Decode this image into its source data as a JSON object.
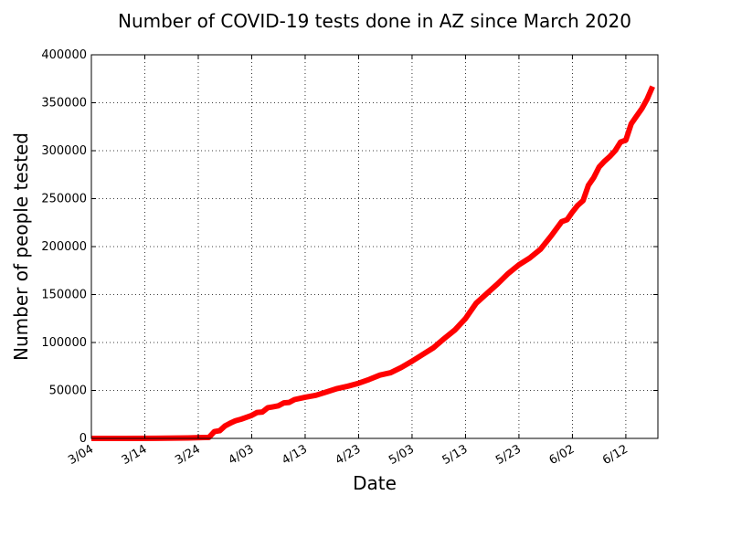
{
  "colors": {
    "series": "#ff0000"
  },
  "chart_data": {
    "type": "line",
    "title": "Number of COVID-19 tests done in AZ since March 2020",
    "xlabel": "Date",
    "ylabel": "Number of people tested",
    "xlim": [
      "2020-03-04",
      "2020-06-18"
    ],
    "ylim": [
      0,
      400000
    ],
    "grid": true,
    "x_ticks": [
      "3/04",
      "3/14",
      "3/24",
      "4/03",
      "4/13",
      "4/23",
      "5/03",
      "5/13",
      "5/23",
      "6/02",
      "6/12"
    ],
    "x_tick_dates": [
      "2020-03-04",
      "2020-03-14",
      "2020-03-24",
      "2020-04-03",
      "2020-04-13",
      "2020-04-23",
      "2020-05-03",
      "2020-05-13",
      "2020-05-23",
      "2020-06-02",
      "2020-06-12"
    ],
    "y_ticks": [
      "0",
      "50000",
      "100000",
      "150000",
      "200000",
      "250000",
      "300000",
      "350000",
      "400000"
    ],
    "y_tick_values": [
      0,
      50000,
      100000,
      150000,
      200000,
      250000,
      300000,
      350000,
      400000
    ],
    "series": [
      {
        "x": [
          "2020-03-04",
          "2020-03-10",
          "2020-03-16",
          "2020-03-22",
          "2020-03-26",
          "2020-03-27",
          "2020-03-28",
          "2020-03-29",
          "2020-03-30",
          "2020-03-31",
          "2020-04-01",
          "2020-04-02",
          "2020-04-03",
          "2020-04-04",
          "2020-04-05",
          "2020-04-06",
          "2020-04-07",
          "2020-04-08",
          "2020-04-09",
          "2020-04-10",
          "2020-04-11",
          "2020-04-13",
          "2020-04-15",
          "2020-04-17",
          "2020-04-19",
          "2020-04-21",
          "2020-04-23",
          "2020-04-25",
          "2020-04-27",
          "2020-04-29",
          "2020-05-01",
          "2020-05-03",
          "2020-05-05",
          "2020-05-07",
          "2020-05-09",
          "2020-05-11",
          "2020-05-13",
          "2020-05-15",
          "2020-05-17",
          "2020-05-19",
          "2020-05-21",
          "2020-05-23",
          "2020-05-25",
          "2020-05-27",
          "2020-05-29",
          "2020-05-31",
          "2020-06-01",
          "2020-06-02",
          "2020-06-03",
          "2020-06-04",
          "2020-06-05",
          "2020-06-06",
          "2020-06-07",
          "2020-06-08",
          "2020-06-09",
          "2020-06-10",
          "2020-06-11",
          "2020-06-12",
          "2020-06-13",
          "2020-06-14",
          "2020-06-15",
          "2020-06-16",
          "2020-06-17"
        ],
        "y": [
          0,
          0,
          100,
          500,
          1000,
          7000,
          8000,
          13000,
          16000,
          18500,
          20000,
          22000,
          24000,
          27000,
          27500,
          32000,
          33000,
          34000,
          37000,
          37500,
          40500,
          43000,
          45000,
          48500,
          52000,
          54500,
          57500,
          61500,
          66000,
          68500,
          74000,
          80500,
          87500,
          94500,
          104000,
          113000,
          125000,
          141000,
          151000,
          161000,
          172000,
          181000,
          188000,
          197000,
          211000,
          226000,
          228000,
          236000,
          243000,
          248000,
          264000,
          272000,
          283000,
          289000,
          294000,
          300000,
          309000,
          311000,
          328000,
          336000,
          344000,
          354000,
          367000
        ]
      }
    ]
  }
}
